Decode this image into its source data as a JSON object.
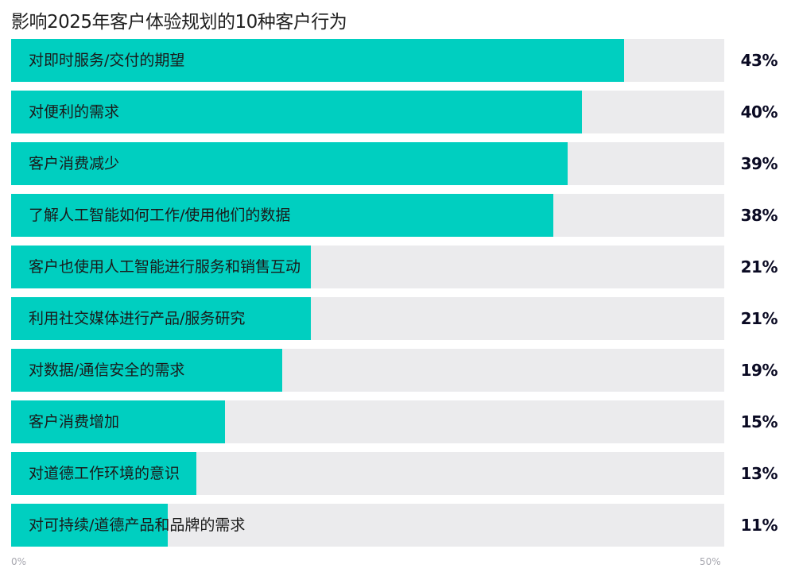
{
  "colors": {
    "bar": "#00cfc0",
    "track": "#ebebed"
  },
  "chart_data": {
    "type": "bar",
    "orientation": "horizontal",
    "title": "影响2025年客户体验规划的10种客户行为",
    "xlim": [
      0,
      50
    ],
    "x_ticks": [
      "0%",
      "50%"
    ],
    "categories": [
      "对即时服务/交付的期望",
      "对便利的需求",
      "客户消费减少",
      "了解人工智能如何工作/使用他们的数据",
      "客户也使用人工智能进行服务和销售互动",
      "利用社交媒体进行产品/服务研究",
      "对数据/通信安全的需求",
      "客户消费增加",
      "对道德工作环境的意识",
      "对可持续/道德产品和品牌的需求"
    ],
    "values": [
      43,
      40,
      39,
      38,
      21,
      21,
      19,
      15,
      13,
      11
    ],
    "value_labels": [
      "43%",
      "40%",
      "39%",
      "38%",
      "21%",
      "21%",
      "19%",
      "15%",
      "13%",
      "11%"
    ]
  }
}
